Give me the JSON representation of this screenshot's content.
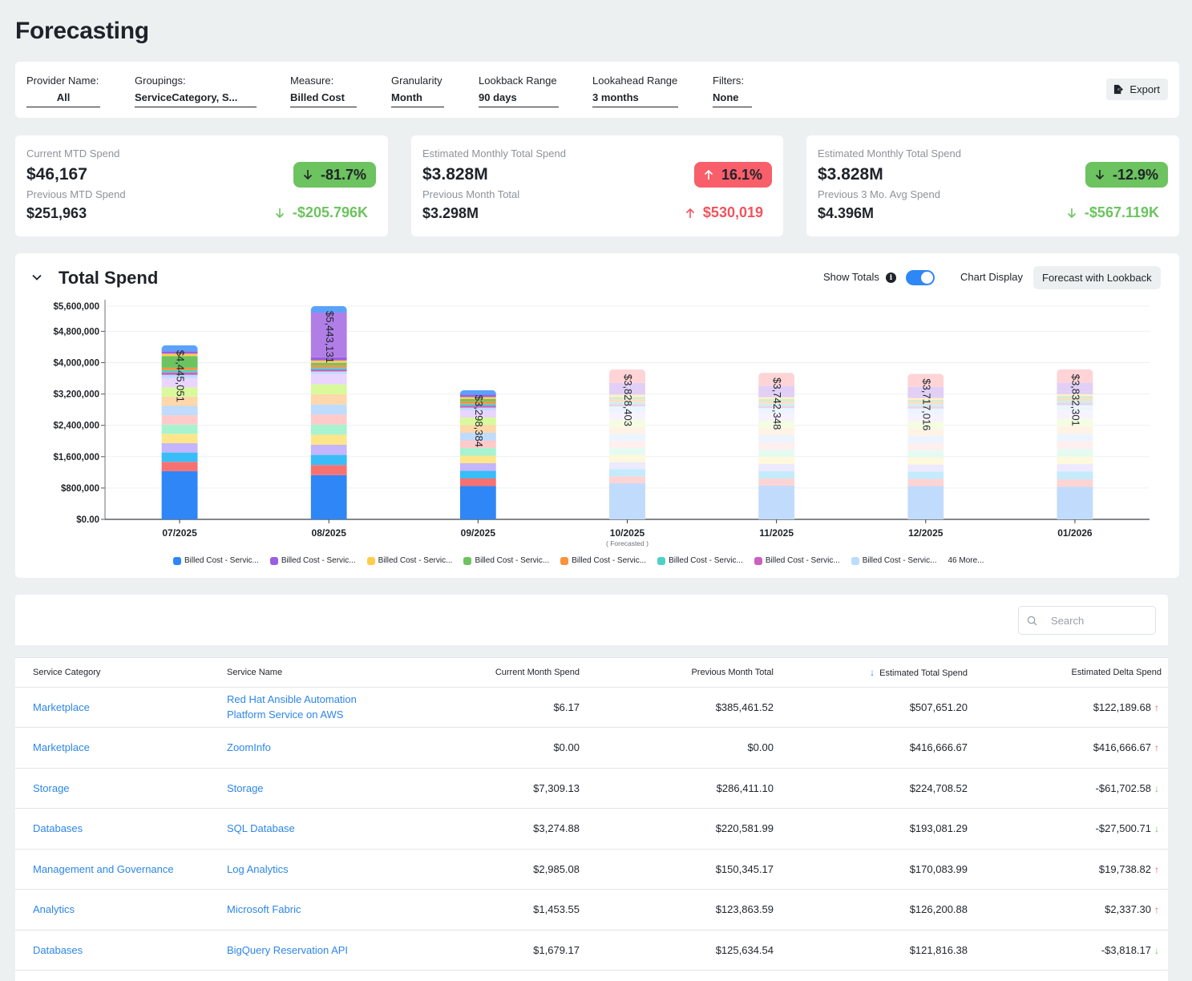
{
  "page": {
    "title": "Forecasting"
  },
  "filters": [
    {
      "label": "Provider Name:",
      "value": "All"
    },
    {
      "label": "Groupings:",
      "value": "ServiceCategory, S..."
    },
    {
      "label": "Measure:",
      "value": "Billed Cost"
    },
    {
      "label": "Granularity",
      "value": "Month"
    },
    {
      "label": "Lookback Range",
      "value": "90 days"
    },
    {
      "label": "Lookahead Range",
      "value": "3 months"
    },
    {
      "label": "Filters:",
      "value": "None"
    }
  ],
  "export": {
    "label": "Export",
    "icon": "file-export-icon"
  },
  "kpis": [
    {
      "label": "Current MTD Spend",
      "value": "$46,167",
      "sub_label": "Previous MTD Spend",
      "sub_value": "$251,963",
      "pct": "-81.7%",
      "pct_direction": "down",
      "pct_color": "#6cc35f",
      "delta": "-$205.796K",
      "delta_direction": "down",
      "delta_color": "#6cc35f"
    },
    {
      "label": "Estimated Monthly Total Spend",
      "value": "$3.828M",
      "sub_label": "Previous Month Total",
      "sub_value": "$3.298M",
      "pct": "16.1%",
      "pct_direction": "up",
      "pct_color": "#f85f6a",
      "delta": "$530,019",
      "delta_direction": "up",
      "delta_color": "#f2535e"
    },
    {
      "label": "Estimated Monthly Total Spend",
      "value": "$3.828M",
      "sub_label": "Previous 3 Mo. Avg Spend",
      "sub_value": "$4.396M",
      "pct": "-12.9%",
      "pct_direction": "down",
      "pct_color": "#6cc35f",
      "delta": "-$567.119K",
      "delta_direction": "down",
      "delta_color": "#6cc35f"
    }
  ],
  "chart_section": {
    "title": "Total Spend",
    "show_totals_label": "Show Totals",
    "show_totals_on": true,
    "chart_display_label": "Chart Display",
    "chart_display_value": "Forecast with Lookback"
  },
  "chart_data": {
    "type": "bar",
    "stacked": true,
    "title": "Total Spend",
    "xlabel": "",
    "ylabel": "",
    "categories": [
      "07/2025",
      "08/2025",
      "09/2025",
      "10/2025",
      "11/2025",
      "12/2025",
      "01/2026"
    ],
    "category_sublabels": [
      "",
      "",
      "",
      "( Forecasted )",
      "",
      "",
      ""
    ],
    "forecasted": [
      false,
      false,
      false,
      true,
      true,
      true,
      true
    ],
    "totals": [
      4445051,
      5443131,
      3298384,
      3828403,
      3742348,
      3717016,
      3832301
    ],
    "total_labels": [
      "$4,445,051",
      "$5,443,131",
      "$3,298,384",
      "$3,828,403",
      "$3,742,348",
      "$3,717,016",
      "$3,832,301"
    ],
    "ylim": [
      0,
      5443131
    ],
    "yticks": [
      0,
      800000,
      1600000,
      2400000,
      3200000,
      4000000,
      4800000
    ],
    "ytick_labels": [
      "$0.00",
      "$800,000",
      "$1,600,000",
      "$2,400,000",
      "$3,200,000",
      "$4,000,000",
      "$4,800,000"
    ],
    "ymax_label": "$5,600,000",
    "grid": true,
    "legend_position": "bottom",
    "series": [
      {
        "name": "Billed Cost - Servic...",
        "color": "#2f86f6",
        "values": [
          1230000,
          1130000,
          850000,
          920000,
          860000,
          850000,
          830000
        ]
      },
      {
        "name": "Billed Cost - Servic...",
        "color": "#9b5ee0",
        "values": [
          60000,
          80000,
          60000,
          70000,
          60000,
          60000,
          60000
        ]
      },
      {
        "name": "Billed Cost - Servic...",
        "color": "#ffcc4d",
        "values": [
          60000,
          60000,
          50000,
          60000,
          50000,
          50000,
          50000
        ]
      },
      {
        "name": "Billed Cost - Servic...",
        "color": "#6cc35f",
        "values": [
          300000,
          60000,
          60000,
          60000,
          60000,
          50000,
          60000
        ]
      },
      {
        "name": "Billed Cost - Servic...",
        "color": "#fb923c",
        "values": [
          60000,
          60000,
          60000,
          70000,
          60000,
          60000,
          60000
        ]
      },
      {
        "name": "Billed Cost - Servic...",
        "color": "#4fd1c5",
        "values": [
          60000,
          50000,
          50000,
          60000,
          60000,
          60000,
          60000
        ]
      },
      {
        "name": "Billed Cost - Servic...",
        "color": "#cc5fbf",
        "values": [
          60000,
          50000,
          50000,
          50000,
          50000,
          50000,
          50000
        ]
      },
      {
        "name": "Billed Cost - Servic...",
        "color": "#bcdcfd",
        "values": [
          80000,
          70000,
          60000,
          160000,
          140000,
          150000,
          150000
        ]
      }
    ],
    "legend_more": "46 More..."
  },
  "search": {
    "placeholder": "Search",
    "value": ""
  },
  "table": {
    "sorted_column": 4,
    "sort_direction": "desc",
    "columns": [
      "Service Category",
      "Service Name",
      "Current Month Spend",
      "Previous Month Total",
      "Estimated Total Spend",
      "Estimated Delta Spend"
    ],
    "rows": [
      {
        "category": "Marketplace",
        "service": "Red Hat Ansible Automation Platform Service on AWS",
        "current": "$6.17",
        "previous": "$385,461.52",
        "estimated": "$507,651.20",
        "delta": "$122,189.68",
        "delta_direction": "up"
      },
      {
        "category": "Marketplace",
        "service": "ZoomInfo",
        "current": "$0.00",
        "previous": "$0.00",
        "estimated": "$416,666.67",
        "delta": "$416,666.67",
        "delta_direction": "up"
      },
      {
        "category": "Storage",
        "service": "Storage",
        "current": "$7,309.13",
        "previous": "$286,411.10",
        "estimated": "$224,708.52",
        "delta": "-$61,702.58",
        "delta_direction": "down"
      },
      {
        "category": "Databases",
        "service": "SQL Database",
        "current": "$3,274.88",
        "previous": "$220,581.99",
        "estimated": "$193,081.29",
        "delta": "-$27,500.71",
        "delta_direction": "down"
      },
      {
        "category": "Management and Governance",
        "service": "Log Analytics",
        "current": "$2,985.08",
        "previous": "$150,345.17",
        "estimated": "$170,083.99",
        "delta": "$19,738.82",
        "delta_direction": "up"
      },
      {
        "category": "Analytics",
        "service": "Microsoft Fabric",
        "current": "$1,453.55",
        "previous": "$123,863.59",
        "estimated": "$126,200.88",
        "delta": "$2,337.30",
        "delta_direction": "up"
      },
      {
        "category": "Databases",
        "service": "BigQuery Reservation API",
        "current": "$1,679.17",
        "previous": "$125,634.54",
        "estimated": "$121,816.38",
        "delta": "-$3,818.17",
        "delta_direction": "down"
      }
    ]
  }
}
